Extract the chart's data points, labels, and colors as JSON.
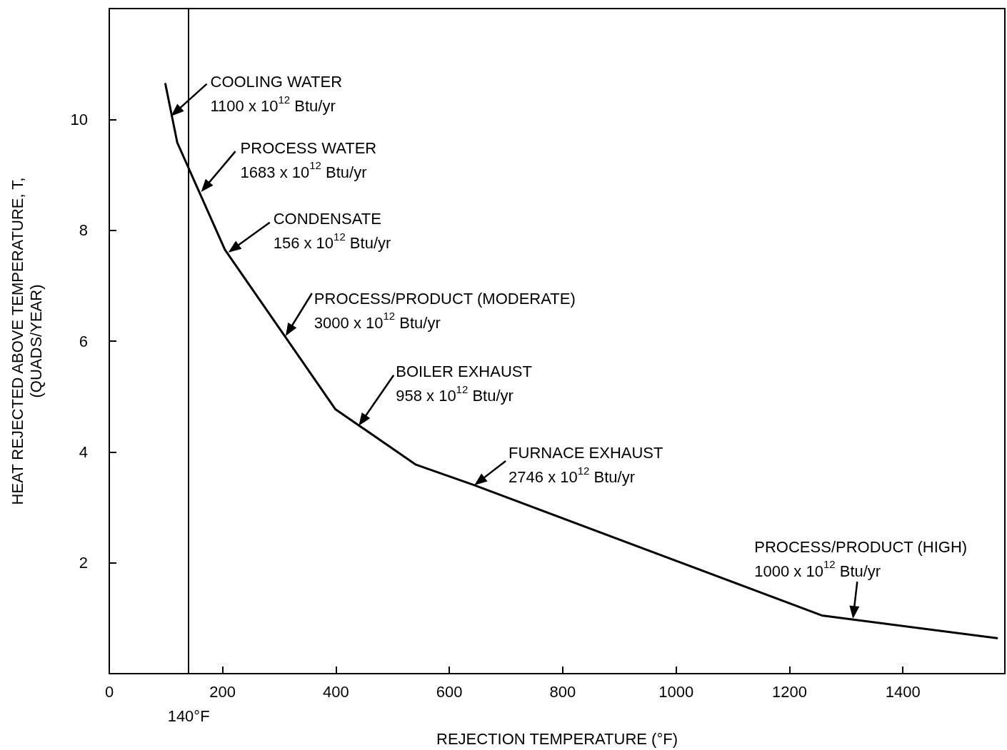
{
  "chart_data": {
    "type": "line",
    "xlabel": "REJECTION TEMPERATURE (°F)",
    "ylabel": "HEAT REJECTED ABOVE TEMPERATURE, T,\n(QUADS/YEAR)",
    "series": [
      {
        "color": "#000000",
        "x": [
          99,
          120,
          204,
          399,
          541,
          644,
          1257,
          1566
        ],
        "values": [
          10.64,
          9.58,
          7.65,
          4.77,
          3.77,
          3.4,
          1.05,
          0.64
        ]
      }
    ],
    "xlim": [
      0,
      1580
    ],
    "xticks": [
      0,
      200,
      400,
      600,
      800,
      1000,
      1200,
      1400
    ],
    "ylim": [
      0,
      12
    ],
    "yticks": [
      2,
      4,
      6,
      8,
      10
    ],
    "grid": false,
    "marker": "none",
    "line_style": "solid",
    "ref_lines": [
      {
        "axis": "x",
        "value": 140,
        "label": "140°F",
        "color": "#000000"
      }
    ],
    "annotations": [
      {
        "text": "COOLING WATER\n1100 x 10$^{12}$ Btu/yr",
        "x": 109,
        "y": 10.06
      },
      {
        "text": "PROCESS WATER\n1683 x 10$^{12}$ Btu/yr",
        "x": 162,
        "y": 8.69
      },
      {
        "text": "CONDENSATE\n156 x 10$^{12}$ Btu/yr",
        "x": 210,
        "y": 7.6
      },
      {
        "text": "PROCESS/PRODUCT (MODERATE)\n3000 x 10$^{12}$ Btu/yr",
        "x": 311,
        "y": 6.09
      },
      {
        "text": "BOILER EXHAUST\n958 x 10$^{12}$ Btu/yr",
        "x": 440,
        "y": 4.47
      },
      {
        "text": "FURNACE EXHAUST\n2746 x 10$^{12}$ Btu/yr",
        "x": 644,
        "y": 3.4
      },
      {
        "text": "PROCESS/PRODUCT (HIGH)\n1000 x 10$^{12}$ Btu/yr",
        "x": 1312,
        "y": 0.99
      }
    ]
  }
}
